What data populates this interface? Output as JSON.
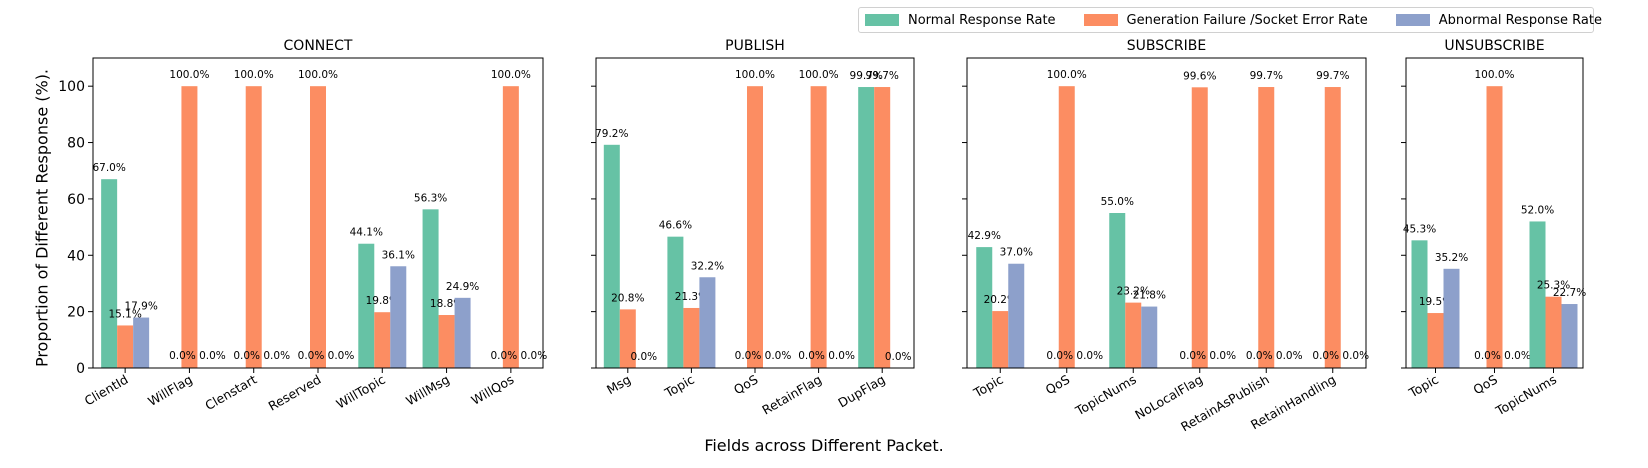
{
  "chart_data": {
    "type": "bar",
    "ylabel": "Proportion of Different Response (%).",
    "xlabel": "Fields across Different Packet.",
    "ylim": [
      0,
      110
    ],
    "yticks": [
      0,
      20,
      40,
      60,
      80,
      100
    ],
    "grid": false,
    "legend_position": "top-right",
    "series": [
      {
        "name": "Normal Response Rate",
        "color": "#66c2a5"
      },
      {
        "name": "Generation Failure /Socket Error Rate",
        "color": "#fc8d62"
      },
      {
        "name": "Abnormal Response Rate",
        "color": "#8da0cb"
      }
    ],
    "panels": [
      {
        "title": "CONNECT",
        "categories": [
          "ClientId",
          "WillFlag",
          "Clenstart",
          "Reserved",
          "WillTopic",
          "WillMsg",
          "WillQos"
        ],
        "values": [
          [
            67.0,
            0.0,
            0.0,
            0.0,
            44.1,
            56.3,
            0.0
          ],
          [
            15.1,
            100.0,
            100.0,
            100.0,
            19.8,
            18.8,
            100.0
          ],
          [
            17.9,
            0.0,
            0.0,
            0.0,
            36.1,
            24.9,
            0.0
          ]
        ],
        "labels": [
          [
            "67.0%",
            "",
            "",
            "",
            "44.1%",
            "56.3%",
            ""
          ],
          [
            "15.1%",
            "100.0%",
            "100.0%",
            "100.0%",
            "19.8%",
            "18.8%",
            "100.0%"
          ],
          [
            "17.9%",
            "",
            "",
            "",
            "36.1%",
            "24.9%",
            ""
          ]
        ],
        "zero_labels": [
          "",
          "0.0% 0.0%",
          "0.0% 0.0%",
          "0.0% 0.0%",
          "",
          "",
          "0.0% 0.0%"
        ]
      },
      {
        "title": "PUBLISH",
        "categories": [
          "Msg",
          "Topic",
          "QoS",
          "RetainFlag",
          "DupFlag"
        ],
        "values": [
          [
            79.2,
            46.6,
            0.0,
            0.0,
            99.7
          ],
          [
            20.8,
            21.3,
            100.0,
            100.0,
            99.7
          ],
          [
            0.0,
            32.2,
            0.0,
            0.0,
            0.0
          ]
        ],
        "labels": [
          [
            "79.2%",
            "46.6%",
            "",
            "",
            "99.7%"
          ],
          [
            "20.8%",
            "21.3%",
            "100.0%",
            "100.0%",
            "99.7%"
          ],
          [
            "0.0%",
            "32.2%",
            "",
            "",
            "0.0%"
          ]
        ],
        "zero_labels": [
          "",
          "",
          "0.0% 0.0%",
          "0.0% 0.0%",
          ""
        ]
      },
      {
        "title": "SUBSCRIBE",
        "categories": [
          "Topic",
          "QoS",
          "TopicNums",
          "NoLocalFlag",
          "RetainAsPublish",
          "RetainHandling"
        ],
        "values": [
          [
            42.9,
            0.0,
            55.0,
            0.0,
            0.0,
            0.0
          ],
          [
            20.2,
            100.0,
            23.2,
            99.6,
            99.7,
            99.7
          ],
          [
            37.0,
            0.0,
            21.8,
            0.0,
            0.0,
            0.0
          ]
        ],
        "labels": [
          [
            "42.9%",
            "",
            "55.0%",
            "",
            "",
            ""
          ],
          [
            "20.2%",
            "100.0%",
            "23.2%",
            "99.6%",
            "99.7%",
            "99.7%"
          ],
          [
            "37.0%",
            "",
            "21.8%",
            "",
            "",
            ""
          ]
        ],
        "zero_labels": [
          "",
          "0.0% 0.0%",
          "",
          "0.0% 0.0%",
          "0.0% 0.0%",
          "0.0% 0.0%"
        ]
      },
      {
        "title": "UNSUBSCRIBE",
        "categories": [
          "Topic",
          "QoS",
          "TopicNums"
        ],
        "values": [
          [
            45.3,
            0.0,
            52.0
          ],
          [
            19.5,
            100.0,
            25.3
          ],
          [
            35.2,
            0.0,
            22.7
          ]
        ],
        "labels": [
          [
            "45.3%",
            "",
            "52.0%"
          ],
          [
            "19.5%",
            "100.0%",
            "25.3%"
          ],
          [
            "35.2%",
            "",
            "22.7%"
          ]
        ],
        "zero_labels": [
          "",
          "0.0% 0.0%",
          ""
        ]
      }
    ]
  }
}
